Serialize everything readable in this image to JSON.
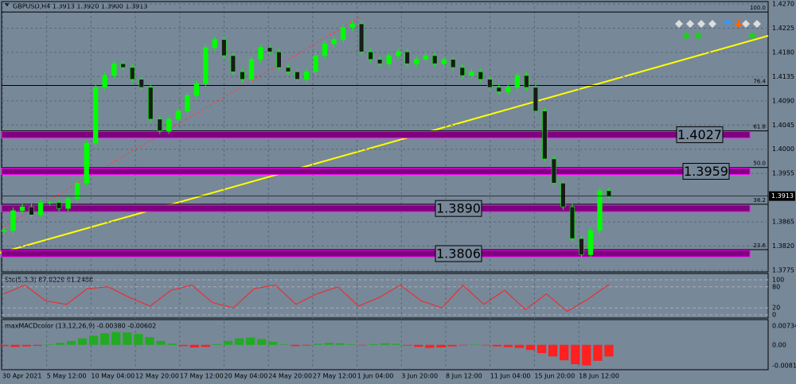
{
  "chart_data": [
    {
      "type": "candlestick",
      "title": "GBPUSD,H4  1.3913 1.3920 1.3900 1.3913",
      "x_labels": [
        "30 Apr 2021",
        "5 May 12:00",
        "10 May 04:00",
        "12 May 20:00",
        "17 May 12:00",
        "20 May 04:00",
        "24 May 20:00",
        "27 May 12:00",
        "1 Jun 04:00",
        "3 Jun 20:00",
        "8 Jun 12:00",
        "11 Jun 04:00",
        "15 Jun 20:00",
        "18 Jun 12:00"
      ],
      "values": [
        1.3849,
        1.3886,
        1.3893,
        1.3878,
        1.3901,
        1.3901,
        1.389,
        1.3908,
        1.3937,
        1.4011,
        1.4115,
        1.4137,
        1.4159,
        1.4152,
        1.413,
        1.4115,
        1.4056,
        1.4034,
        1.4056,
        1.4071,
        1.41,
        1.4122,
        1.4189,
        1.4204,
        1.4174,
        1.4144,
        1.413,
        1.4167,
        1.4189,
        1.4181,
        1.4152,
        1.4144,
        1.413,
        1.4144,
        1.4174,
        1.4196,
        1.4204,
        1.4226,
        1.4233,
        1.4181,
        1.4167,
        1.4159,
        1.4174,
        1.4181,
        1.4159,
        1.4167,
        1.4174,
        1.4159,
        1.4167,
        1.4152,
        1.4137,
        1.4144,
        1.413,
        1.4115,
        1.4107,
        1.4115,
        1.4137,
        1.4115,
        1.4071,
        1.3982,
        1.3937,
        1.3893,
        1.3834,
        1.3804,
        1.3849,
        1.3923,
        1.3913
      ],
      "up_color": "#00ff00",
      "down_color": "#1a1a1a",
      "ylim": [
        1.3775,
        1.427
      ],
      "yticks": [
        {
          "value": 1.427,
          "label": "1.4270"
        },
        {
          "value": 1.4225,
          "label": "1.4225"
        },
        {
          "value": 1.418,
          "label": "1.4180"
        },
        {
          "value": 1.4135,
          "label": "1.4135"
        },
        {
          "value": 1.409,
          "label": "1.4090"
        },
        {
          "value": 1.4045,
          "label": "1.4045"
        },
        {
          "value": 1.4,
          "label": "1.4000"
        },
        {
          "value": 1.3955,
          "label": "1.3955"
        },
        {
          "value": 1.3865,
          "label": "1.3865"
        },
        {
          "value": 1.382,
          "label": "1.3820"
        },
        {
          "value": 1.3775,
          "label": "1.3775"
        }
      ],
      "last_price": {
        "value": 1.3913,
        "label": "1.3913"
      },
      "levels": [
        {
          "value": 1.4027,
          "label": "1.4027"
        },
        {
          "value": 1.3959,
          "label": "1.3959"
        },
        {
          "value": 1.389,
          "label": "1.3890"
        },
        {
          "value": 1.3806,
          "label": "1.3806"
        }
      ],
      "level_color": "#800080",
      "fib_low": 1.3677,
      "fib_high": 1.4255,
      "fib_levels": [
        {
          "value": 100,
          "label": "100.0"
        },
        {
          "value": 76.4,
          "label": "76.4"
        },
        {
          "value": 61.8,
          "label": "61.8"
        },
        {
          "value": 50,
          "label": "50.0"
        },
        {
          "value": 38.2,
          "label": "38.2"
        },
        {
          "value": 23.6,
          "label": "23.6"
        }
      ],
      "grid": true
    },
    {
      "type": "line",
      "title": "Sto(5,3,3) 87.0229 91.2488",
      "values": [
        60,
        85,
        40,
        30,
        75,
        80,
        50,
        25,
        70,
        85,
        35,
        20,
        75,
        85,
        30,
        60,
        80,
        25,
        50,
        85,
        40,
        20,
        85,
        30,
        70,
        15,
        60,
        10,
        45,
        87
      ],
      "color": "#ff2020",
      "ylim": [
        0,
        100
      ],
      "yticks": [
        0,
        20,
        80,
        100
      ]
    },
    {
      "type": "bar",
      "title": "maxMACDcolor (13,12,26,9) -0.00380 -0.00602",
      "values": [
        -0.0005,
        -0.0008,
        -0.0006,
        -0.0004,
        0.0002,
        0.0008,
        0.0015,
        0.0025,
        0.0035,
        0.0045,
        0.005,
        0.0048,
        0.0042,
        0.003,
        0.0015,
        0.0005,
        -0.0005,
        -0.001,
        -0.0008,
        0.0003,
        0.0015,
        0.0025,
        0.0028,
        0.0022,
        0.0012,
        0.0002,
        -0.0005,
        -0.0003,
        0.0004,
        0.0008,
        0.0006,
        0.0002,
        -0.0002,
        0.0003,
        0.0006,
        0.0004,
        -0.0003,
        -0.0008,
        -0.0012,
        -0.001,
        -0.0006,
        -0.0002,
        0.0001,
        -0.0002,
        -0.0006,
        -0.0009,
        -0.0012,
        -0.002,
        -0.0032,
        -0.0045,
        -0.006,
        -0.0075,
        -0.008,
        -0.0062,
        -0.0045
      ],
      "up_color": "#22aa22",
      "down_color": "#ff2020",
      "ylim": [
        -0.00811,
        0.00734
      ],
      "yticks": [
        0.00734,
        {
          "value": 0,
          "label": "0.00"
        },
        -0.00811
      ]
    }
  ]
}
